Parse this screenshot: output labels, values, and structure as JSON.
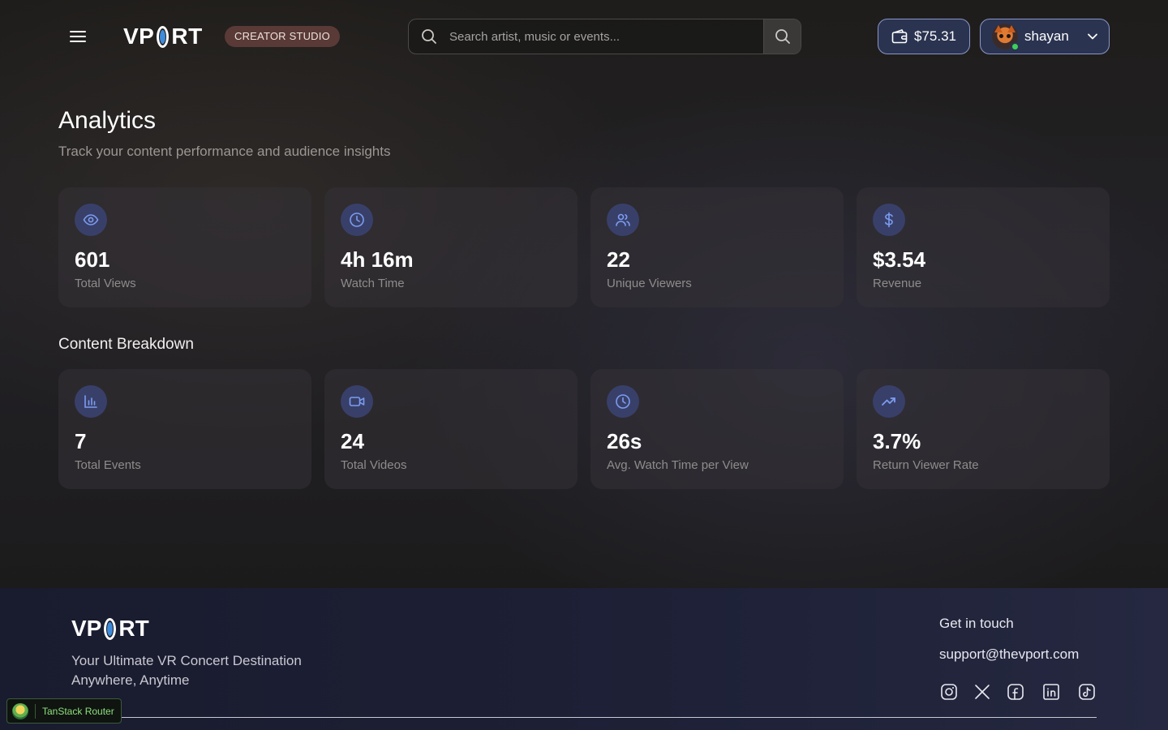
{
  "header": {
    "menu_icon": "hamburger-menu-icon",
    "logo_left": "VP",
    "logo_right": "RT",
    "studio_badge": "CREATOR STUDIO",
    "search": {
      "placeholder": "Search artist, music or events...",
      "value": ""
    },
    "wallet": {
      "amount": "$75.31",
      "icon": "wallet-icon"
    },
    "user": {
      "name": "shayan",
      "status": "online"
    }
  },
  "main": {
    "title": "Analytics",
    "subtitle": "Track your content performance and audience insights",
    "stats": [
      {
        "icon": "eye-icon",
        "value": "601",
        "label": "Total Views"
      },
      {
        "icon": "clock-icon",
        "value": "4h 16m",
        "label": "Watch Time"
      },
      {
        "icon": "users-icon",
        "value": "22",
        "label": "Unique Viewers"
      },
      {
        "icon": "dollar-icon",
        "value": "$3.54",
        "label": "Revenue"
      }
    ],
    "breakdown_title": "Content Breakdown",
    "breakdown": [
      {
        "icon": "bar-chart-icon",
        "value": "7",
        "label": "Total Events"
      },
      {
        "icon": "video-icon",
        "value": "24",
        "label": "Total Videos"
      },
      {
        "icon": "clock-icon",
        "value": "26s",
        "label": "Avg. Watch Time per View"
      },
      {
        "icon": "trending-up-icon",
        "value": "3.7%",
        "label": "Return Viewer Rate"
      }
    ]
  },
  "footer": {
    "logo_left": "VP",
    "logo_right": "RT",
    "tagline_line1": "Your Ultimate VR Concert Destination",
    "tagline_line2": "Anywhere, Anytime",
    "contact_heading": "Get in touch",
    "email": "support@thevport.com",
    "socials": [
      "instagram-icon",
      "x-icon",
      "facebook-icon",
      "linkedin-icon",
      "tiktok-icon"
    ]
  },
  "devtools": {
    "label": "TanStack Router"
  },
  "colors": {
    "accent": "#8a97c9",
    "icon_bg": "#38406a",
    "icon_stroke": "#7d9cf0",
    "badge_bg": "#5a3a36"
  }
}
